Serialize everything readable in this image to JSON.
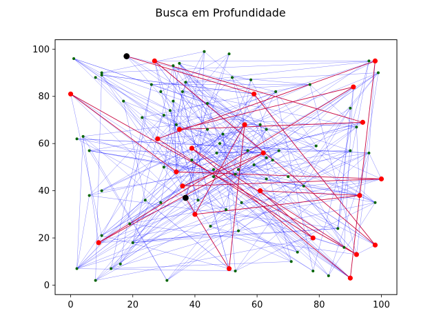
{
  "chart_data": {
    "type": "scatter",
    "title": "Busca em Profundidade",
    "xlabel": "",
    "ylabel": "",
    "xlim": [
      -5,
      105
    ],
    "ylim": [
      -4,
      104
    ],
    "xticks": [
      0,
      20,
      40,
      60,
      80,
      100
    ],
    "yticks": [
      0,
      20,
      40,
      60,
      80,
      100
    ],
    "grid": false,
    "colors": {
      "edges": "#0000ff",
      "path": "#c8003c",
      "visited_node": "#ff0000",
      "unvisited_node": "#006400",
      "endpoint_node": "#000000"
    },
    "series": [
      {
        "role": "unvisited",
        "points": [
          [
            1,
            96
          ],
          [
            2,
            62
          ],
          [
            4,
            63
          ],
          [
            6,
            38
          ],
          [
            6,
            57
          ],
          [
            8,
            88
          ],
          [
            10,
            89
          ],
          [
            10,
            40
          ],
          [
            10,
            21
          ],
          [
            13,
            7
          ],
          [
            16,
            9
          ],
          [
            17,
            78
          ],
          [
            19,
            26
          ],
          [
            20,
            18
          ],
          [
            23,
            71
          ],
          [
            24,
            36
          ],
          [
            26,
            85
          ],
          [
            29,
            35
          ],
          [
            29,
            82
          ],
          [
            31,
            2
          ],
          [
            30,
            50
          ],
          [
            32,
            74
          ],
          [
            33,
            78
          ],
          [
            33,
            93
          ],
          [
            34,
            68
          ],
          [
            35,
            94
          ],
          [
            36,
            82
          ],
          [
            37,
            86
          ],
          [
            39,
            53
          ],
          [
            41,
            36
          ],
          [
            43,
            99
          ],
          [
            44,
            77
          ],
          [
            45,
            25
          ],
          [
            46,
            46
          ],
          [
            46,
            49
          ],
          [
            47,
            56
          ],
          [
            48,
            60
          ],
          [
            49,
            64
          ],
          [
            50,
            32
          ],
          [
            51,
            98
          ],
          [
            52,
            88
          ],
          [
            53,
            47
          ],
          [
            53,
            6
          ],
          [
            54,
            49
          ],
          [
            54,
            23
          ],
          [
            55,
            35
          ],
          [
            57,
            57
          ],
          [
            58,
            87
          ],
          [
            59,
            51
          ],
          [
            61,
            68
          ],
          [
            63,
            66
          ],
          [
            63,
            54
          ],
          [
            63,
            45
          ],
          [
            65,
            53
          ],
          [
            66,
            82
          ],
          [
            67,
            57
          ],
          [
            70,
            46
          ],
          [
            71,
            10
          ],
          [
            73,
            14
          ],
          [
            75,
            42
          ],
          [
            77,
            85
          ],
          [
            78,
            6
          ],
          [
            79,
            59
          ],
          [
            83,
            4
          ],
          [
            86,
            24
          ],
          [
            88,
            16
          ],
          [
            90,
            75
          ],
          [
            90,
            57
          ],
          [
            92,
            67
          ],
          [
            96,
            56
          ],
          [
            98,
            35
          ],
          [
            99,
            90
          ],
          [
            2,
            7
          ],
          [
            8,
            2
          ],
          [
            10,
            90
          ],
          [
            44,
            66
          ],
          [
            30,
            72
          ],
          [
            96,
            95
          ]
        ]
      },
      {
        "role": "visited",
        "points": [
          [
            0,
            81
          ],
          [
            9,
            18
          ],
          [
            27,
            95
          ],
          [
            28,
            62
          ],
          [
            34,
            48
          ],
          [
            35,
            66
          ],
          [
            36,
            42
          ],
          [
            39,
            58
          ],
          [
            40,
            30
          ],
          [
            51,
            7
          ],
          [
            56,
            68
          ],
          [
            59,
            81
          ],
          [
            61,
            40
          ],
          [
            62,
            56
          ],
          [
            78,
            20
          ],
          [
            90,
            3
          ],
          [
            91,
            84
          ],
          [
            92,
            13
          ],
          [
            93,
            38
          ],
          [
            94,
            69
          ],
          [
            98,
            95
          ],
          [
            98,
            17
          ],
          [
            100,
            45
          ]
        ]
      },
      {
        "role": "endpoints",
        "points": [
          [
            18,
            97
          ],
          [
            37,
            37
          ]
        ]
      }
    ],
    "path": [
      [
        18,
        97
      ],
      [
        59,
        81
      ],
      [
        98,
        17
      ],
      [
        27,
        95
      ],
      [
        94,
        69
      ],
      [
        35,
        66
      ],
      [
        91,
        84
      ],
      [
        9,
        18
      ],
      [
        62,
        56
      ],
      [
        36,
        42
      ],
      [
        100,
        45
      ],
      [
        34,
        48
      ],
      [
        0,
        81
      ],
      [
        92,
        13
      ],
      [
        39,
        58
      ],
      [
        90,
        3
      ],
      [
        98,
        95
      ],
      [
        28,
        62
      ],
      [
        78,
        20
      ],
      [
        61,
        40
      ],
      [
        93,
        38
      ],
      [
        40,
        30
      ],
      [
        56,
        68
      ],
      [
        51,
        7
      ],
      [
        37,
        37
      ]
    ]
  }
}
